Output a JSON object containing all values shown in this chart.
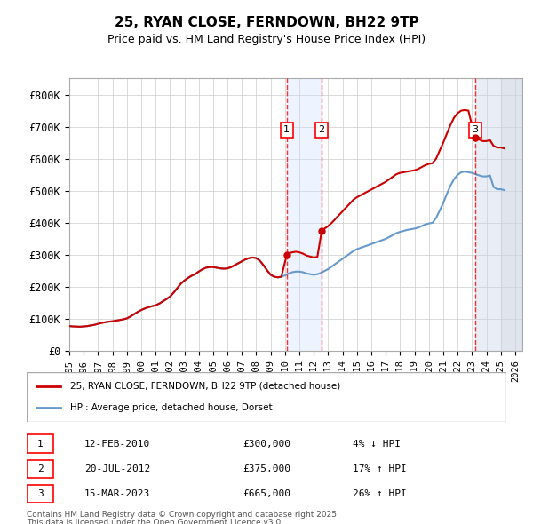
{
  "title_line1": "25, RYAN CLOSE, FERNDOWN, BH22 9TP",
  "title_line2": "Price paid vs. HM Land Registry's House Price Index (HPI)",
  "ylabel_ticks": [
    "£0",
    "£100K",
    "£200K",
    "£300K",
    "£400K",
    "£500K",
    "£600K",
    "£700K",
    "£800K"
  ],
  "ytick_values": [
    0,
    100000,
    200000,
    300000,
    400000,
    500000,
    600000,
    700000,
    800000
  ],
  "ylim": [
    0,
    850000
  ],
  "xlim_start": 1995.0,
  "xlim_end": 2026.5,
  "legend_line1": "25, RYAN CLOSE, FERNDOWN, BH22 9TP (detached house)",
  "legend_line2": "HPI: Average price, detached house, Dorset",
  "sale_color": "#cc0000",
  "hpi_color": "#6699cc",
  "transactions": [
    {
      "num": 1,
      "date": "12-FEB-2010",
      "date_dec": 2010.12,
      "price": 300000,
      "pct": "4%",
      "dir": "↓"
    },
    {
      "num": 2,
      "date": "20-JUL-2012",
      "date_dec": 2012.55,
      "price": 375000,
      "pct": "17%",
      "dir": "↑"
    },
    {
      "num": 3,
      "date": "15-MAR-2023",
      "date_dec": 2023.21,
      "price": 665000,
      "pct": "26%",
      "dir": "↑"
    }
  ],
  "footer_line1": "Contains HM Land Registry data © Crown copyright and database right 2025.",
  "footer_line2": "This data is licensed under the Open Government Licence v3.0.",
  "hpi_data_x": [
    1995.0,
    1995.25,
    1995.5,
    1995.75,
    1996.0,
    1996.25,
    1996.5,
    1996.75,
    1997.0,
    1997.25,
    1997.5,
    1997.75,
    1998.0,
    1998.25,
    1998.5,
    1998.75,
    1999.0,
    1999.25,
    1999.5,
    1999.75,
    2000.0,
    2000.25,
    2000.5,
    2000.75,
    2001.0,
    2001.25,
    2001.5,
    2001.75,
    2002.0,
    2002.25,
    2002.5,
    2002.75,
    2003.0,
    2003.25,
    2003.5,
    2003.75,
    2004.0,
    2004.25,
    2004.5,
    2004.75,
    2005.0,
    2005.25,
    2005.5,
    2005.75,
    2006.0,
    2006.25,
    2006.5,
    2006.75,
    2007.0,
    2007.25,
    2007.5,
    2007.75,
    2008.0,
    2008.25,
    2008.5,
    2008.75,
    2009.0,
    2009.25,
    2009.5,
    2009.75,
    2010.0,
    2010.25,
    2010.5,
    2010.75,
    2011.0,
    2011.25,
    2011.5,
    2011.75,
    2012.0,
    2012.25,
    2012.5,
    2012.75,
    2013.0,
    2013.25,
    2013.5,
    2013.75,
    2014.0,
    2014.25,
    2014.5,
    2014.75,
    2015.0,
    2015.25,
    2015.5,
    2015.75,
    2016.0,
    2016.25,
    2016.5,
    2016.75,
    2017.0,
    2017.25,
    2017.5,
    2017.75,
    2018.0,
    2018.25,
    2018.5,
    2018.75,
    2019.0,
    2019.25,
    2019.5,
    2019.75,
    2020.0,
    2020.25,
    2020.5,
    2020.75,
    2021.0,
    2021.25,
    2021.5,
    2021.75,
    2022.0,
    2022.25,
    2022.5,
    2022.75,
    2023.0,
    2023.25,
    2023.5,
    2023.75,
    2024.0,
    2024.25,
    2024.5,
    2024.75,
    2025.0,
    2025.25
  ],
  "hpi_data_y": [
    78000,
    77000,
    76500,
    76000,
    77000,
    78000,
    80000,
    82000,
    85000,
    88000,
    90000,
    92000,
    93000,
    95000,
    97000,
    99000,
    102000,
    108000,
    115000,
    122000,
    128000,
    133000,
    137000,
    140000,
    143000,
    148000,
    155000,
    162000,
    170000,
    182000,
    196000,
    210000,
    220000,
    228000,
    235000,
    240000,
    248000,
    255000,
    260000,
    262000,
    262000,
    260000,
    258000,
    257000,
    258000,
    262000,
    268000,
    274000,
    280000,
    286000,
    290000,
    292000,
    290000,
    282000,
    268000,
    252000,
    238000,
    232000,
    230000,
    232000,
    236000,
    242000,
    246000,
    248000,
    248000,
    246000,
    242000,
    240000,
    238000,
    240000,
    244000,
    250000,
    256000,
    264000,
    272000,
    280000,
    288000,
    296000,
    304000,
    312000,
    318000,
    322000,
    326000,
    330000,
    334000,
    338000,
    342000,
    346000,
    350000,
    356000,
    362000,
    368000,
    372000,
    375000,
    378000,
    380000,
    382000,
    385000,
    390000,
    395000,
    398000,
    400000,
    415000,
    438000,
    462000,
    490000,
    516000,
    536000,
    550000,
    558000,
    560000,
    558000,
    556000,
    552000,
    548000,
    545000,
    545000,
    548000,
    512000,
    505000,
    505000,
    502000
  ],
  "sale_data_x": [
    1995.0,
    1995.25,
    1995.5,
    1995.75,
    1996.0,
    1996.25,
    1996.5,
    1996.75,
    1997.0,
    1997.25,
    1997.5,
    1997.75,
    1998.0,
    1998.25,
    1998.5,
    1998.75,
    1999.0,
    1999.25,
    1999.5,
    1999.75,
    2000.0,
    2000.25,
    2000.5,
    2000.75,
    2001.0,
    2001.25,
    2001.5,
    2001.75,
    2002.0,
    2002.25,
    2002.5,
    2002.75,
    2003.0,
    2003.25,
    2003.5,
    2003.75,
    2004.0,
    2004.25,
    2004.5,
    2004.75,
    2005.0,
    2005.25,
    2005.5,
    2005.75,
    2006.0,
    2006.25,
    2006.5,
    2006.75,
    2007.0,
    2007.25,
    2007.5,
    2007.75,
    2008.0,
    2008.25,
    2008.5,
    2008.75,
    2009.0,
    2009.25,
    2009.5,
    2009.75,
    2010.12,
    2010.25,
    2010.5,
    2010.75,
    2011.0,
    2011.25,
    2011.5,
    2011.75,
    2012.0,
    2012.25,
    2012.55,
    2012.75,
    2013.0,
    2013.25,
    2013.5,
    2013.75,
    2014.0,
    2014.25,
    2014.5,
    2014.75,
    2015.0,
    2015.25,
    2015.5,
    2015.75,
    2016.0,
    2016.25,
    2016.5,
    2016.75,
    2017.0,
    2017.25,
    2017.5,
    2017.75,
    2018.0,
    2018.25,
    2018.5,
    2018.75,
    2019.0,
    2019.25,
    2019.5,
    2019.75,
    2020.0,
    2020.25,
    2020.5,
    2020.75,
    2021.0,
    2021.25,
    2021.5,
    2021.75,
    2022.0,
    2022.25,
    2022.5,
    2022.75,
    2023.21,
    2023.25,
    2023.5,
    2023.75,
    2024.0,
    2024.25,
    2024.5,
    2024.75,
    2025.0,
    2025.25
  ],
  "sale_data_y": [
    78000,
    77000,
    76500,
    76000,
    77000,
    78000,
    80000,
    82000,
    85000,
    88000,
    90000,
    92000,
    93000,
    95000,
    97000,
    99000,
    102000,
    108000,
    115000,
    122000,
    128000,
    133000,
    137000,
    140000,
    143000,
    148000,
    155000,
    162000,
    170000,
    182000,
    196000,
    210000,
    220000,
    228000,
    235000,
    240000,
    248000,
    255000,
    260000,
    262000,
    262000,
    260000,
    258000,
    257000,
    258000,
    262000,
    268000,
    274000,
    280000,
    286000,
    290000,
    292000,
    290000,
    282000,
    268000,
    252000,
    238000,
    232000,
    230000,
    232000,
    300000,
    305000,
    308000,
    310000,
    308000,
    304000,
    298000,
    295000,
    292000,
    294000,
    375000,
    382000,
    390000,
    400000,
    412000,
    424000,
    436000,
    448000,
    460000,
    472000,
    480000,
    486000,
    492000,
    498000,
    504000,
    510000,
    516000,
    522000,
    528000,
    536000,
    544000,
    552000,
    556000,
    558000,
    560000,
    562000,
    564000,
    568000,
    574000,
    580000,
    584000,
    586000,
    600000,
    625000,
    650000,
    678000,
    705000,
    728000,
    742000,
    750000,
    752000,
    750000,
    665000,
    668000,
    660000,
    655000,
    655000,
    658000,
    640000,
    635000,
    635000,
    632000
  ]
}
